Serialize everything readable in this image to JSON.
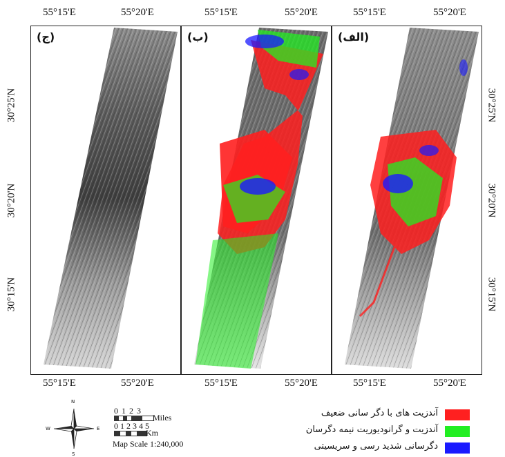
{
  "coords": {
    "lon_left": "55°15'E",
    "lon_right": "55°20'E",
    "lat_top": "30°25'N",
    "lat_mid": "30°20'N",
    "lat_bottom": "30°15'N"
  },
  "panels": [
    {
      "label": "(ج)",
      "key": "c"
    },
    {
      "label": "(ب)",
      "key": "b"
    },
    {
      "label": "(الف)",
      "key": "a"
    }
  ],
  "legend": [
    {
      "label": "آندزیت های با دگر سانی  ضعیف",
      "color": "#ff2020"
    },
    {
      "label": "آندزیت و گرانودیوریت نیمه دگرسان",
      "color": "#22ee22"
    },
    {
      "label": "دگرسانی شدید  رسی و سریسیتی",
      "color": "#1a1aff"
    }
  ],
  "compass": {
    "n": "N",
    "s": "S",
    "e": "E",
    "w": "W"
  },
  "scale": {
    "miles_ticks": "0  1  2  3",
    "miles_label": "Miles",
    "km_ticks": "0 1 2 3 4 5",
    "km_label": "Km",
    "map_scale": "Map Scale 1:240,000"
  }
}
